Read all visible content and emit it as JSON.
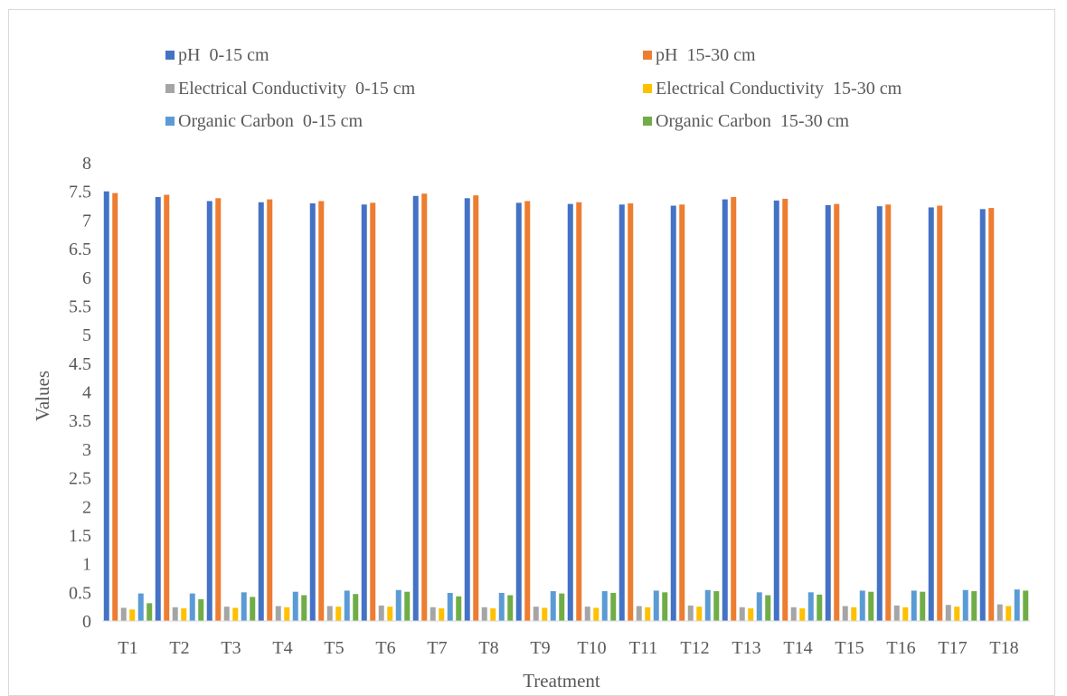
{
  "chart_data": {
    "type": "bar",
    "title": "",
    "xlabel": "Treatment",
    "ylabel": "Values",
    "ylim": [
      0,
      8
    ],
    "yticks": [
      "0",
      "0.5",
      "1",
      "1.5",
      "2",
      "2.5",
      "3",
      "3.5",
      "4",
      "4.5",
      "5",
      "5.5",
      "6",
      "6.5",
      "7",
      "7.5",
      "8"
    ],
    "grid": false,
    "legend_position": "top",
    "categories": [
      "T1",
      "T2",
      "T3",
      "T4",
      "T5",
      "T6",
      "T7",
      "T8",
      "T9",
      "T10",
      "T11",
      "T12",
      "T13",
      "T14",
      "T15",
      "T16",
      "T17",
      "T18"
    ],
    "series": [
      {
        "name": "pH  0-15 cm",
        "color": "#4472c4",
        "values": [
          7.5,
          7.4,
          7.33,
          7.31,
          7.29,
          7.27,
          7.42,
          7.38,
          7.3,
          7.28,
          7.27,
          7.25,
          7.36,
          7.34,
          7.26,
          7.24,
          7.22,
          7.19
        ]
      },
      {
        "name": "pH  15-30 cm",
        "color": "#ed7d31",
        "values": [
          7.47,
          7.44,
          7.38,
          7.36,
          7.33,
          7.3,
          7.46,
          7.43,
          7.33,
          7.31,
          7.29,
          7.27,
          7.4,
          7.37,
          7.28,
          7.27,
          7.25,
          7.21
        ]
      },
      {
        "name": "Electrical Conductivity  0-15 cm",
        "color": "#a5a5a5",
        "values": [
          0.23,
          0.24,
          0.25,
          0.26,
          0.26,
          0.27,
          0.24,
          0.24,
          0.25,
          0.25,
          0.26,
          0.27,
          0.24,
          0.24,
          0.26,
          0.27,
          0.28,
          0.29
        ]
      },
      {
        "name": "Electrical Conductivity  15-30 cm",
        "color": "#ffc000",
        "values": [
          0.2,
          0.22,
          0.23,
          0.24,
          0.25,
          0.25,
          0.22,
          0.22,
          0.23,
          0.23,
          0.24,
          0.25,
          0.22,
          0.22,
          0.24,
          0.24,
          0.25,
          0.26
        ]
      },
      {
        "name": "Organic Carbon  0-15 cm",
        "color": "#5b9bd5",
        "values": [
          0.48,
          0.48,
          0.5,
          0.51,
          0.53,
          0.54,
          0.49,
          0.49,
          0.52,
          0.52,
          0.53,
          0.54,
          0.5,
          0.5,
          0.53,
          0.53,
          0.54,
          0.55
        ]
      },
      {
        "name": "Organic Carbon  15-30 cm",
        "color": "#70ad47",
        "values": [
          0.31,
          0.38,
          0.42,
          0.45,
          0.47,
          0.51,
          0.43,
          0.45,
          0.48,
          0.49,
          0.5,
          0.52,
          0.45,
          0.46,
          0.51,
          0.51,
          0.52,
          0.53
        ]
      }
    ]
  }
}
